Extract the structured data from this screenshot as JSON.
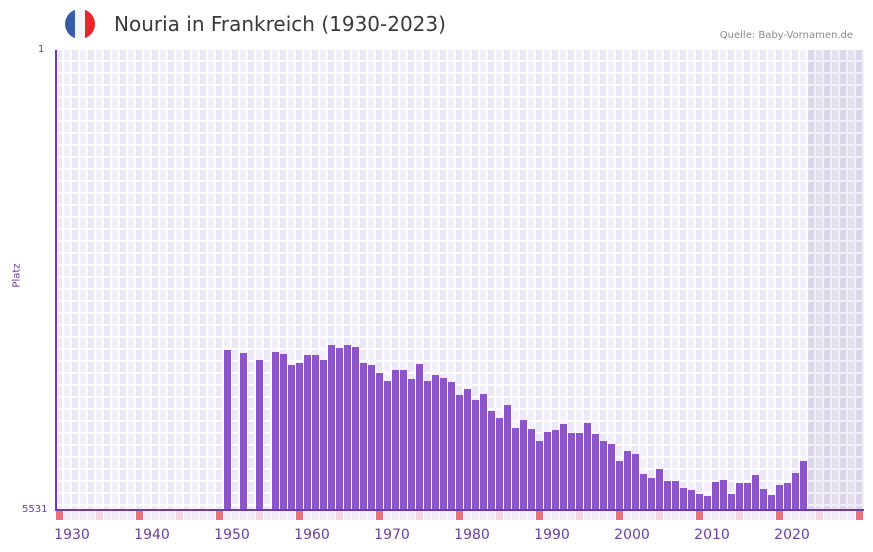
{
  "header": {
    "title": "Nouria in Frankreich (1930-2023)",
    "source": "Quelle: Baby-Vornamen.de",
    "flag_colors": [
      "#3b5aa6",
      "#f4f4f6",
      "#e8262c"
    ]
  },
  "colors": {
    "bar": "#8c55c8",
    "axis": "#6b3fa0",
    "marker_decade": "#e8737a",
    "marker_half": "#f5d5de",
    "marker_other": "#f0ecf9"
  },
  "chart_data": {
    "type": "bar",
    "title": "Nouria in Frankreich (1930-2023)",
    "xlabel": "",
    "ylabel": "Platz",
    "y_inverted": true,
    "ylim": [
      1,
      5531
    ],
    "y_tick_labels": [
      "1",
      "5531"
    ],
    "x_range": [
      1930,
      2030
    ],
    "x_tick_labels": [
      "1930",
      "1940",
      "1950",
      "1960",
      "1970",
      "1980",
      "1990",
      "2000",
      "2010",
      "2020"
    ],
    "future_region_start": 2024,
    "grid": true,
    "legend": null,
    "categories": [
      1951,
      1953,
      1955,
      1957,
      1958,
      1959,
      1960,
      1961,
      1962,
      1963,
      1964,
      1965,
      1966,
      1967,
      1968,
      1969,
      1970,
      1971,
      1972,
      1973,
      1974,
      1975,
      1976,
      1977,
      1978,
      1979,
      1980,
      1981,
      1982,
      1983,
      1984,
      1985,
      1986,
      1987,
      1988,
      1989,
      1990,
      1991,
      1992,
      1993,
      1994,
      1995,
      1996,
      1997,
      1998,
      1999,
      2000,
      2001,
      2002,
      2003,
      2004,
      2005,
      2006,
      2007,
      2008,
      2009,
      2010,
      2011,
      2012,
      2013,
      2014,
      2015,
      2016,
      2017,
      2018,
      2019,
      2020,
      2021,
      2022,
      2023
    ],
    "values": [
      3608,
      3644,
      3728,
      3632,
      3656,
      3788,
      3764,
      3668,
      3668,
      3728,
      3548,
      3584,
      3548,
      3572,
      3764,
      3788,
      3884,
      3980,
      3848,
      3848,
      3956,
      3776,
      3980,
      3908,
      3944,
      3992,
      4149,
      4076,
      4209,
      4137,
      4341,
      4425,
      4269,
      4545,
      4449,
      4557,
      4702,
      4594,
      4569,
      4497,
      4606,
      4606,
      4485,
      4618,
      4702,
      4738,
      4942,
      4822,
      4858,
      5099,
      5147,
      5039,
      5183,
      5183,
      5267,
      5291,
      5339,
      5363,
      5195,
      5171,
      5339,
      5207,
      5207,
      5111,
      5279,
      5351,
      5231,
      5207,
      5087,
      4942
    ]
  }
}
